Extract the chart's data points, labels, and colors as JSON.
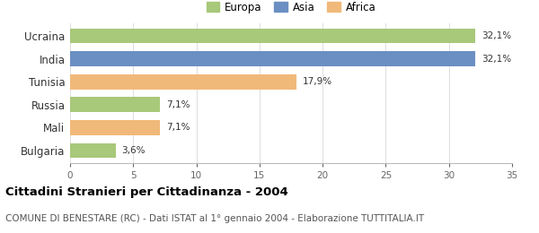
{
  "categories": [
    "Ucraina",
    "India",
    "Tunisia",
    "Russia",
    "Mali",
    "Bulgaria"
  ],
  "values": [
    32.1,
    32.1,
    17.9,
    7.1,
    7.1,
    3.6
  ],
  "labels": [
    "32,1%",
    "32,1%",
    "17,9%",
    "7,1%",
    "7,1%",
    "3,6%"
  ],
  "colors": [
    "#a8c87a",
    "#6b8fc2",
    "#f0b97a",
    "#a8c87a",
    "#f0b97a",
    "#a8c87a"
  ],
  "legend_labels": [
    "Europa",
    "Asia",
    "Africa"
  ],
  "legend_colors": [
    "#a8c87a",
    "#6b8fc2",
    "#f0b97a"
  ],
  "xlim": [
    0,
    35
  ],
  "xticks": [
    0,
    5,
    10,
    15,
    20,
    25,
    30,
    35
  ],
  "title": "Cittadini Stranieri per Cittadinanza - 2004",
  "subtitle": "COMUNE DI BENESTARE (RC) - Dati ISTAT al 1° gennaio 2004 - Elaborazione TUTTITALIA.IT",
  "title_fontsize": 9.5,
  "subtitle_fontsize": 7.5,
  "bar_height": 0.65,
  "background_color": "#ffffff",
  "label_fontsize": 7.5
}
